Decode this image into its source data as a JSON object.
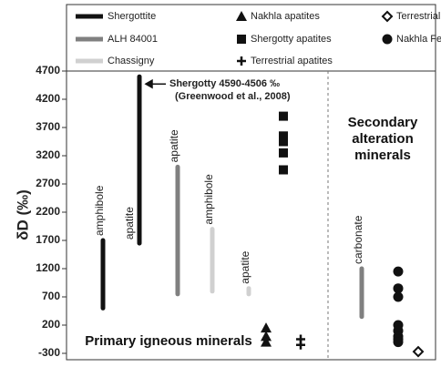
{
  "chart_data": {
    "type": "range",
    "y_label": "δD (‰)",
    "ylim": [
      -300,
      4700
    ],
    "yticks": [
      4700,
      4200,
      3700,
      3200,
      2700,
      2200,
      1700,
      1200,
      700,
      200,
      -300
    ],
    "series": [
      {
        "name": "Shergottite",
        "color": "#111111",
        "marker": "line",
        "labels": [
          "amphibole",
          "apatite"
        ],
        "low": [
          500,
          1650
        ],
        "high": [
          1700,
          4600
        ]
      },
      {
        "name": "ALH 84001",
        "color": "#808080",
        "marker": "line",
        "labels": [
          "apatite",
          "carbonate"
        ],
        "low": [
          750,
          350
        ],
        "high": [
          3000,
          1200
        ]
      },
      {
        "name": "Chassigny",
        "color": "#d0d0d0",
        "marker": "line",
        "labels": [
          "amphibole",
          "apatite"
        ],
        "low": [
          800,
          750
        ],
        "high": [
          1900,
          850
        ]
      },
      {
        "name": "Nakhla apatites",
        "color": "#111111",
        "marker": "triangle",
        "values": [
          150,
          0,
          -100
        ]
      },
      {
        "name": "Shergotty apatites",
        "color": "#111111",
        "marker": "square",
        "values": [
          3900,
          3550,
          3450,
          3250,
          2950
        ]
      },
      {
        "name": "Terrestrial apatites",
        "color": "#111111",
        "marker": "plus",
        "values": [
          -50,
          -150
        ]
      },
      {
        "name": "Terrestrial Serpentanite",
        "color": "#111111",
        "marker": "diamond",
        "values": [
          -270
        ]
      },
      {
        "name": "Nakhla Fe clay-like veins",
        "color": "#111111",
        "marker": "circle",
        "values": [
          1150,
          850,
          700,
          200,
          100,
          0,
          -50,
          -100
        ]
      }
    ],
    "annotation": [
      "Shergotty 4590-4506 ‰",
      "(Greenwood et al., 2008)"
    ],
    "regions": [
      "Primary igneous minerals",
      "Secondary alteration minerals"
    ]
  }
}
